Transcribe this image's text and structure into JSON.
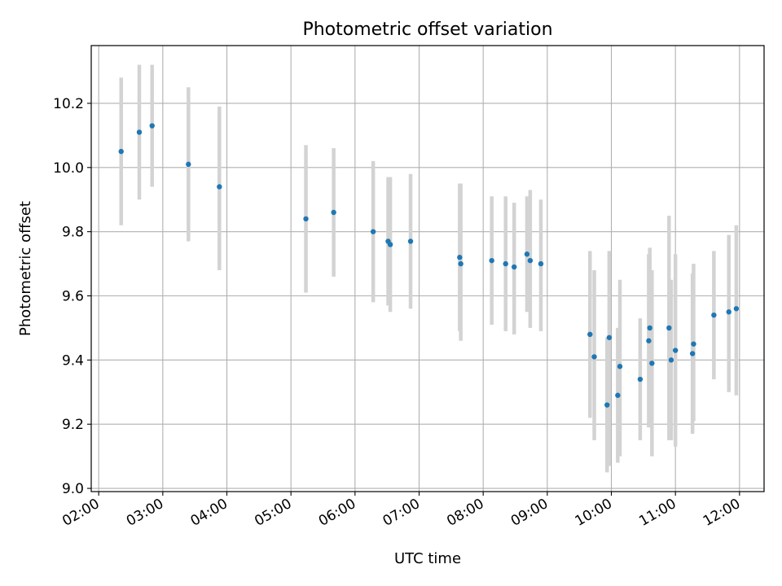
{
  "chart_data": {
    "type": "scatter",
    "title": "Photometric offset variation",
    "xlabel": "UTC time",
    "ylabel": "Photometric offset",
    "xlim": [
      "01:53",
      "12:23"
    ],
    "ylim": [
      8.99,
      10.38
    ],
    "x_ticks": [
      "02:00",
      "03:00",
      "04:00",
      "05:00",
      "06:00",
      "07:00",
      "08:00",
      "09:00",
      "10:00",
      "11:00",
      "12:00"
    ],
    "y_ticks": [
      "9.0",
      "9.2",
      "9.4",
      "9.6",
      "9.8",
      "10.0",
      "10.2"
    ],
    "grid": true,
    "colors": {
      "point": "#1f77b4",
      "errorbar": "#d3d3d3",
      "grid": "#b0b0b0",
      "axes": "#000000"
    },
    "series": [
      {
        "points": [
          {
            "time": "02:21",
            "offset": 10.05,
            "low": 9.82,
            "high": 10.28
          },
          {
            "time": "02:38",
            "offset": 10.11,
            "low": 9.9,
            "high": 10.32
          },
          {
            "time": "02:50",
            "offset": 10.13,
            "low": 9.94,
            "high": 10.32
          },
          {
            "time": "03:24",
            "offset": 10.01,
            "low": 9.77,
            "high": 10.25
          },
          {
            "time": "03:53",
            "offset": 9.94,
            "low": 9.68,
            "high": 10.19
          },
          {
            "time": "05:14",
            "offset": 9.84,
            "low": 9.61,
            "high": 10.07
          },
          {
            "time": "05:40",
            "offset": 9.86,
            "low": 9.66,
            "high": 10.06
          },
          {
            "time": "06:17",
            "offset": 9.8,
            "low": 9.58,
            "high": 10.02
          },
          {
            "time": "06:31",
            "offset": 9.77,
            "low": 9.57,
            "high": 9.97
          },
          {
            "time": "06:33",
            "offset": 9.76,
            "low": 9.55,
            "high": 9.97
          },
          {
            "time": "06:52",
            "offset": 9.77,
            "low": 9.56,
            "high": 9.98
          },
          {
            "time": "07:38",
            "offset": 9.72,
            "low": 9.49,
            "high": 9.95
          },
          {
            "time": "07:39",
            "offset": 9.7,
            "low": 9.46,
            "high": 9.95
          },
          {
            "time": "08:08",
            "offset": 9.71,
            "low": 9.51,
            "high": 9.91
          },
          {
            "time": "08:21",
            "offset": 9.7,
            "low": 9.49,
            "high": 9.91
          },
          {
            "time": "08:29",
            "offset": 9.69,
            "low": 9.48,
            "high": 9.89
          },
          {
            "time": "08:41",
            "offset": 9.73,
            "low": 9.55,
            "high": 9.91
          },
          {
            "time": "08:44",
            "offset": 9.71,
            "low": 9.5,
            "high": 9.93
          },
          {
            "time": "08:54",
            "offset": 9.7,
            "low": 9.49,
            "high": 9.9
          },
          {
            "time": "09:40",
            "offset": 9.48,
            "low": 9.22,
            "high": 9.74
          },
          {
            "time": "09:44",
            "offset": 9.41,
            "low": 9.15,
            "high": 9.68
          },
          {
            "time": "09:56",
            "offset": 9.26,
            "low": 9.05,
            "high": 9.47
          },
          {
            "time": "09:58",
            "offset": 9.47,
            "low": 9.07,
            "high": 9.74
          },
          {
            "time": "10:06",
            "offset": 9.29,
            "low": 9.08,
            "high": 9.5
          },
          {
            "time": "10:08",
            "offset": 9.38,
            "low": 9.1,
            "high": 9.65
          },
          {
            "time": "10:27",
            "offset": 9.34,
            "low": 9.15,
            "high": 9.53
          },
          {
            "time": "10:35",
            "offset": 9.46,
            "low": 9.19,
            "high": 9.73
          },
          {
            "time": "10:36",
            "offset": 9.5,
            "low": 9.25,
            "high": 9.75
          },
          {
            "time": "10:38",
            "offset": 9.39,
            "low": 9.1,
            "high": 9.68
          },
          {
            "time": "10:54",
            "offset": 9.5,
            "low": 9.15,
            "high": 9.85
          },
          {
            "time": "10:56",
            "offset": 9.4,
            "low": 9.15,
            "high": 9.65
          },
          {
            "time": "11:00",
            "offset": 9.43,
            "low": 9.13,
            "high": 9.73
          },
          {
            "time": "11:16",
            "offset": 9.42,
            "low": 9.17,
            "high": 9.67
          },
          {
            "time": "11:17",
            "offset": 9.45,
            "low": 9.21,
            "high": 9.7
          },
          {
            "time": "11:36",
            "offset": 9.54,
            "low": 9.34,
            "high": 9.74
          },
          {
            "time": "11:50",
            "offset": 9.55,
            "low": 9.3,
            "high": 9.79
          },
          {
            "time": "11:57",
            "offset": 9.56,
            "low": 9.29,
            "high": 9.82
          }
        ]
      }
    ]
  }
}
